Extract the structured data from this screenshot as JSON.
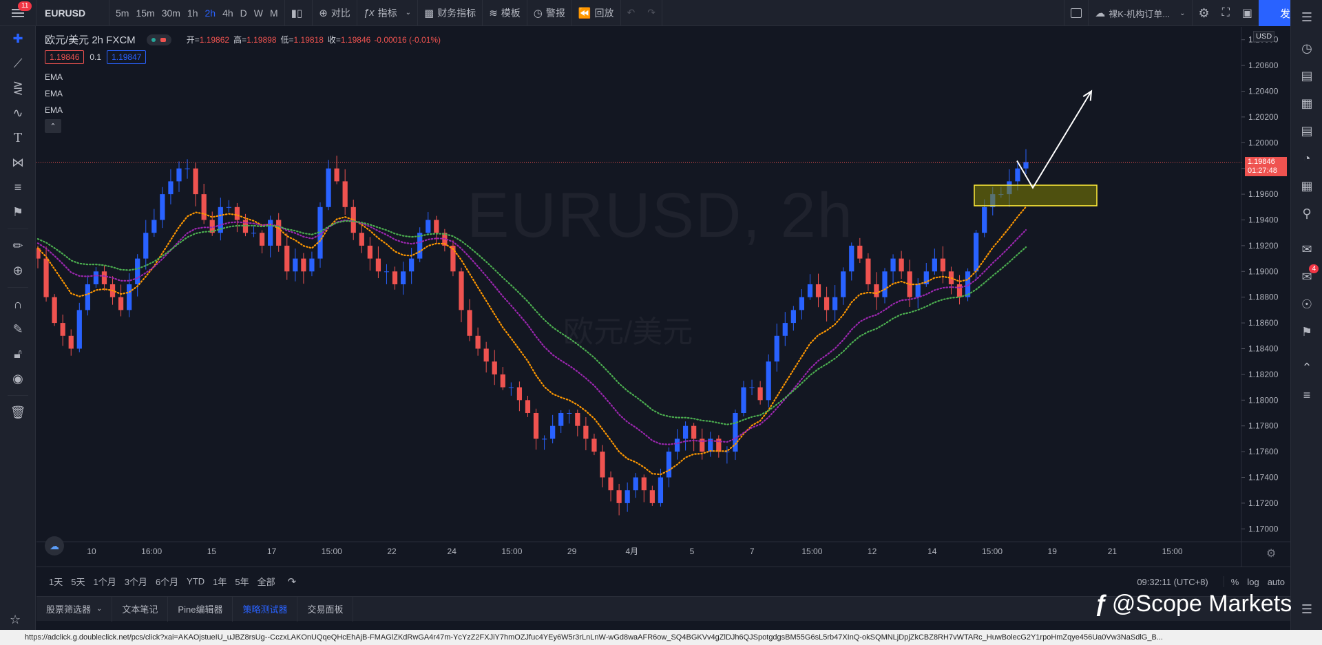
{
  "toolbar": {
    "menu_badge": "11",
    "symbol": "EURUSD",
    "timeframes": [
      "5m",
      "15m",
      "30m",
      "1h",
      "2h",
      "4h",
      "D",
      "W",
      "M"
    ],
    "active_timeframe": "2h",
    "compare": "对比",
    "indicators": "指标",
    "financials": "财务指标",
    "templates": "模板",
    "alert": "警报",
    "replay": "回放",
    "layout_name": "裸K-机构订单...",
    "publish": "发表"
  },
  "legend": {
    "title": "欧元/美元  2h  FXCM",
    "open_label": "开=",
    "open": "1.19862",
    "high_label": "高=",
    "high": "1.19898",
    "low_label": "低=",
    "low": "1.19818",
    "close_label": "收=",
    "close": "1.19846",
    "change": "-0.00016 (-0.01%)",
    "sell_price": "1.19846",
    "spread": "0.1",
    "buy_price": "1.19847",
    "indicators": [
      "EMA",
      "EMA",
      "EMA"
    ]
  },
  "watermark": {
    "symbol": "EURUSD, 2h",
    "desc": "欧元/美元"
  },
  "price_scale": {
    "currency": "USD",
    "ticks": [
      "1.20800",
      "1.20600",
      "1.20400",
      "1.20200",
      "1.20000",
      "1.19800",
      "1.19600",
      "1.19400",
      "1.19200",
      "1.19000",
      "1.18800",
      "1.18600",
      "1.18400",
      "1.18200",
      "1.18000",
      "1.17800",
      "1.17600",
      "1.17400",
      "1.17200",
      "1.17000"
    ],
    "last_price": "1.19846",
    "countdown": "01:27:48"
  },
  "time_scale": {
    "labels": [
      "10",
      "16:00",
      "15",
      "17",
      "15:00",
      "22",
      "24",
      "15:00",
      "29",
      "4月",
      "5",
      "7",
      "15:00",
      "12",
      "14",
      "15:00",
      "19",
      "21",
      "15:00"
    ]
  },
  "range_bar": {
    "ranges": [
      "1天",
      "5天",
      "1个月",
      "3个月",
      "6个月",
      "YTD",
      "1年",
      "5年",
      "全部"
    ],
    "clock": "09:32:11 (UTC+8)",
    "percent": "%",
    "log": "log",
    "auto": "auto"
  },
  "bottom_tabs": [
    "股票筛选器",
    "文本笔记",
    "Pine编辑器",
    "策略测试器",
    "交易面板"
  ],
  "active_bottom_tab": "策略测试器",
  "brand": "@Scope Markets",
  "status_url": "https://adclick.g.doubleclick.net/pcs/click?xai=AKAOjstueIU_uJBZ8rsUg--CczxLAKOnUQqeQHcEhAjB-FMAGlZKdRwGA4r47m-YcYzZ2FXJiY7hmOZJfuc4YEy6W5r3rLnLnW-wGd8waAFR6ow_SQ4BGKVv4gZlDJh6QJSpotgdgsBM55G6sL5rb47XInQ-okSQMNLjDpjZkCBZ8RH7vWTARc_HuwBolecG2Y1rpoHmZqye456Ua0Vw3NaSdlG_B...",
  "right_badge": "4",
  "colors": {
    "bull": "#2962ff",
    "bear": "#ef5350",
    "ema_fast": "#ff9800",
    "ema_mid": "#9c27b0",
    "ema_slow": "#4caf50",
    "accent": "#2962ff"
  },
  "chart_data": {
    "type": "candlestick",
    "ylim": [
      1.169,
      1.209
    ],
    "last_price": 1.19846,
    "zone": {
      "price_top": 1.1967,
      "price_bottom": 1.1951
    },
    "arrow": {
      "from_price": 1.1986,
      "via_price": 1.1965,
      "to_price": 1.204
    },
    "closes": [
      1.191,
      1.188,
      1.186,
      1.185,
      1.184,
      1.187,
      1.189,
      1.19,
      1.189,
      1.188,
      1.187,
      1.189,
      1.191,
      1.193,
      1.194,
      1.196,
      1.197,
      1.198,
      1.198,
      1.196,
      1.194,
      1.193,
      1.195,
      1.195,
      1.194,
      1.193,
      1.193,
      1.192,
      1.194,
      1.192,
      1.19,
      1.191,
      1.19,
      1.191,
      1.195,
      1.198,
      1.197,
      1.195,
      1.193,
      1.192,
      1.191,
      1.19,
      1.19,
      1.189,
      1.19,
      1.191,
      1.193,
      1.194,
      1.193,
      1.192,
      1.19,
      1.187,
      1.185,
      1.184,
      1.183,
      1.182,
      1.181,
      1.181,
      1.18,
      1.179,
      1.177,
      1.177,
      1.178,
      1.179,
      1.179,
      1.178,
      1.177,
      1.176,
      1.174,
      1.173,
      1.172,
      1.173,
      1.174,
      1.173,
      1.172,
      1.174,
      1.176,
      1.177,
      1.178,
      1.177,
      1.176,
      1.177,
      1.176,
      1.176,
      1.179,
      1.181,
      1.181,
      1.18,
      1.183,
      1.185,
      1.186,
      1.187,
      1.188,
      1.189,
      1.188,
      1.187,
      1.188,
      1.19,
      1.192,
      1.191,
      1.189,
      1.188,
      1.19,
      1.191,
      1.19,
      1.188,
      1.189,
      1.19,
      1.191,
      1.19,
      1.189,
      1.188,
      1.19,
      1.193,
      1.195,
      1.196,
      1.196,
      1.197,
      1.198,
      1.1985
    ]
  }
}
